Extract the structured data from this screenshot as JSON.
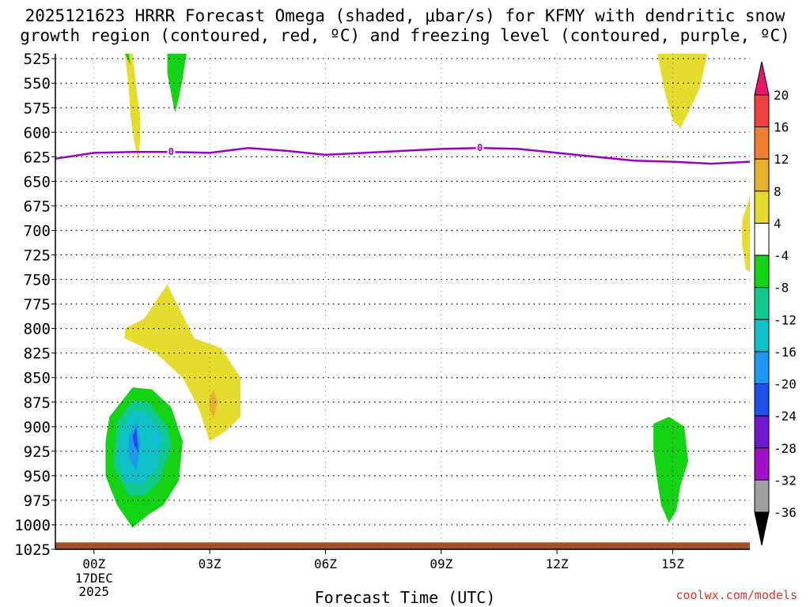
{
  "title_line1": "2025121623 HRRR Forecast Omega (shaded, μbar/s) for KFMY with dendritic snow",
  "title_line2": "growth region (contoured, red, ºC) and freezing level (contoured, purple, ºC)",
  "credit": "coolwx.com/models",
  "chart_data": {
    "type": "heatmap",
    "title": "2025121623 HRRR Forecast Omega (shaded, μbar/s) for KFMY with dendritic snow growth region (contoured, red, ºC) and freezing level (contoured, purple, ºC)",
    "xlabel": "Forecast Time (UTC)",
    "ylabel": "",
    "x_ticks": [
      "00Z",
      "03Z",
      "06Z",
      "09Z",
      "12Z",
      "15Z"
    ],
    "x_tick_hours": [
      0,
      3,
      6,
      9,
      12,
      15
    ],
    "x_date_label": [
      "17DEC",
      "2025"
    ],
    "xlim_hours": [
      -1,
      17
    ],
    "y_ticks": [
      525,
      550,
      575,
      600,
      625,
      650,
      675,
      700,
      725,
      750,
      775,
      800,
      825,
      850,
      875,
      900,
      925,
      950,
      975,
      1000,
      1025
    ],
    "ylim_hPa": [
      1025,
      520
    ],
    "grid": true,
    "colorbar": {
      "ticks": [
        20,
        16,
        12,
        8,
        4,
        -4,
        -8,
        -12,
        -16,
        -20,
        -24,
        -28,
        -32,
        -36
      ],
      "colors": [
        "#e8176e",
        "#f04040",
        "#f08030",
        "#e8b030",
        "#e6dc30",
        "#ffffff",
        "#14d214",
        "#10c890",
        "#10c0c8",
        "#1c98f0",
        "#2050e8",
        "#7018d0",
        "#a010c8",
        "#a0a0a0",
        "#000000"
      ]
    },
    "freezing_level": {
      "label": "0",
      "color": "#9b00c8",
      "x_hours": [
        -1,
        0,
        1,
        2,
        3,
        4,
        5,
        6,
        7,
        8,
        9,
        10,
        11,
        12,
        13,
        14,
        15,
        16,
        17
      ],
      "pressure_hPa": [
        627,
        621,
        620,
        620,
        621,
        616,
        619,
        623,
        621,
        619,
        617,
        616,
        617,
        621,
        625,
        629,
        630,
        632,
        630
      ],
      "label_hours": [
        2,
        10
      ]
    },
    "surface_band": {
      "pressure_hPa": [
        1018,
        1025
      ],
      "color": "#a0522d"
    },
    "shaded_regions": [
      {
        "name": "omega 4 to 8",
        "color": "#e6dc30",
        "hours": [
          0.8,
          1.0,
          1.1,
          1.2,
          1.2,
          1.15,
          1.05,
          0.95,
          0.9
        ],
        "pressure_hPa": [
          520,
          520,
          555,
          585,
          605,
          630,
          610,
          585,
          555
        ]
      },
      {
        "name": "omega 4 to 8",
        "color": "#e6dc30",
        "hours": [
          0.8,
          1.3,
          1.9,
          2.6,
          3.3,
          3.8,
          3.8,
          3.4,
          3.0,
          2.7,
          2.3,
          1.6,
          0.8
        ],
        "pressure_hPa": [
          800,
          790,
          755,
          810,
          820,
          850,
          890,
          905,
          915,
          880,
          850,
          825,
          810
        ]
      },
      {
        "name": "omega 8 to 12",
        "color": "#e8b030",
        "hours": [
          3.0,
          3.1,
          3.2,
          3.1,
          3.0
        ],
        "pressure_hPa": [
          870,
          862,
          875,
          892,
          882
        ]
      },
      {
        "name": "omega -8 to -4",
        "color": "#14d214",
        "hours": [
          1.9,
          2.4,
          2.3,
          2.2,
          2.1,
          2.0,
          1.9
        ],
        "pressure_hPa": [
          520,
          520,
          545,
          565,
          580,
          560,
          540
        ]
      },
      {
        "name": "omega -8 to -4",
        "color": "#14d214",
        "hours": [
          0.8,
          0.9,
          0.95
        ],
        "pressure_hPa": [
          520,
          520,
          532
        ]
      },
      {
        "name": "omega -8 to -4",
        "color": "#14d214",
        "hours": [
          0.4,
          1.0,
          1.5,
          2.0,
          2.3,
          2.2,
          1.8,
          1.4,
          1.0,
          0.6,
          0.3,
          0.3
        ],
        "pressure_hPa": [
          890,
          860,
          862,
          880,
          915,
          955,
          980,
          990,
          1003,
          980,
          950,
          915
        ]
      },
      {
        "name": "omega -12 to -8",
        "color": "#10c890",
        "hours": [
          0.6,
          1.0,
          1.4,
          1.9,
          2.0,
          1.7,
          1.3,
          0.9,
          0.5
        ],
        "pressure_hPa": [
          895,
          873,
          875,
          900,
          920,
          955,
          970,
          970,
          940
        ]
      },
      {
        "name": "omega -16 to -12",
        "color": "#10c0c8",
        "hours": [
          0.7,
          1.0,
          1.4,
          1.8,
          1.6,
          1.2,
          0.8,
          0.6
        ],
        "pressure_hPa": [
          905,
          883,
          886,
          910,
          945,
          960,
          955,
          930
        ]
      },
      {
        "name": "omega -20 to -16",
        "color": "#1c98f0",
        "hours": [
          0.9,
          1.1,
          1.2,
          1.1,
          0.9
        ],
        "pressure_hPa": [
          910,
          895,
          918,
          945,
          930
        ]
      },
      {
        "name": "omega -24 to -20",
        "color": "#2050e8",
        "hours": [
          1.0,
          1.1,
          1.15,
          1.05
        ],
        "pressure_hPa": [
          910,
          900,
          925,
          920
        ]
      },
      {
        "name": "omega 4 to 8",
        "color": "#e6dc30",
        "hours": [
          14.6,
          15.9,
          15.7,
          15.4,
          15.2,
          15.0,
          14.8,
          14.7
        ],
        "pressure_hPa": [
          520,
          520,
          555,
          580,
          596,
          588,
          560,
          540
        ]
      },
      {
        "name": "omega 4 to 8",
        "color": "#e6dc30",
        "hours": [
          17.0,
          16.8,
          16.8,
          16.9,
          17.0
        ],
        "pressure_hPa": [
          665,
          690,
          715,
          740,
          742
        ]
      },
      {
        "name": "omega -8 to -4",
        "color": "#14d214",
        "hours": [
          14.5,
          14.9,
          15.3,
          15.4,
          15.2,
          15.1,
          14.9,
          14.7,
          14.6,
          14.5
        ],
        "pressure_hPa": [
          897,
          890,
          900,
          935,
          960,
          985,
          998,
          980,
          955,
          925
        ]
      }
    ]
  }
}
